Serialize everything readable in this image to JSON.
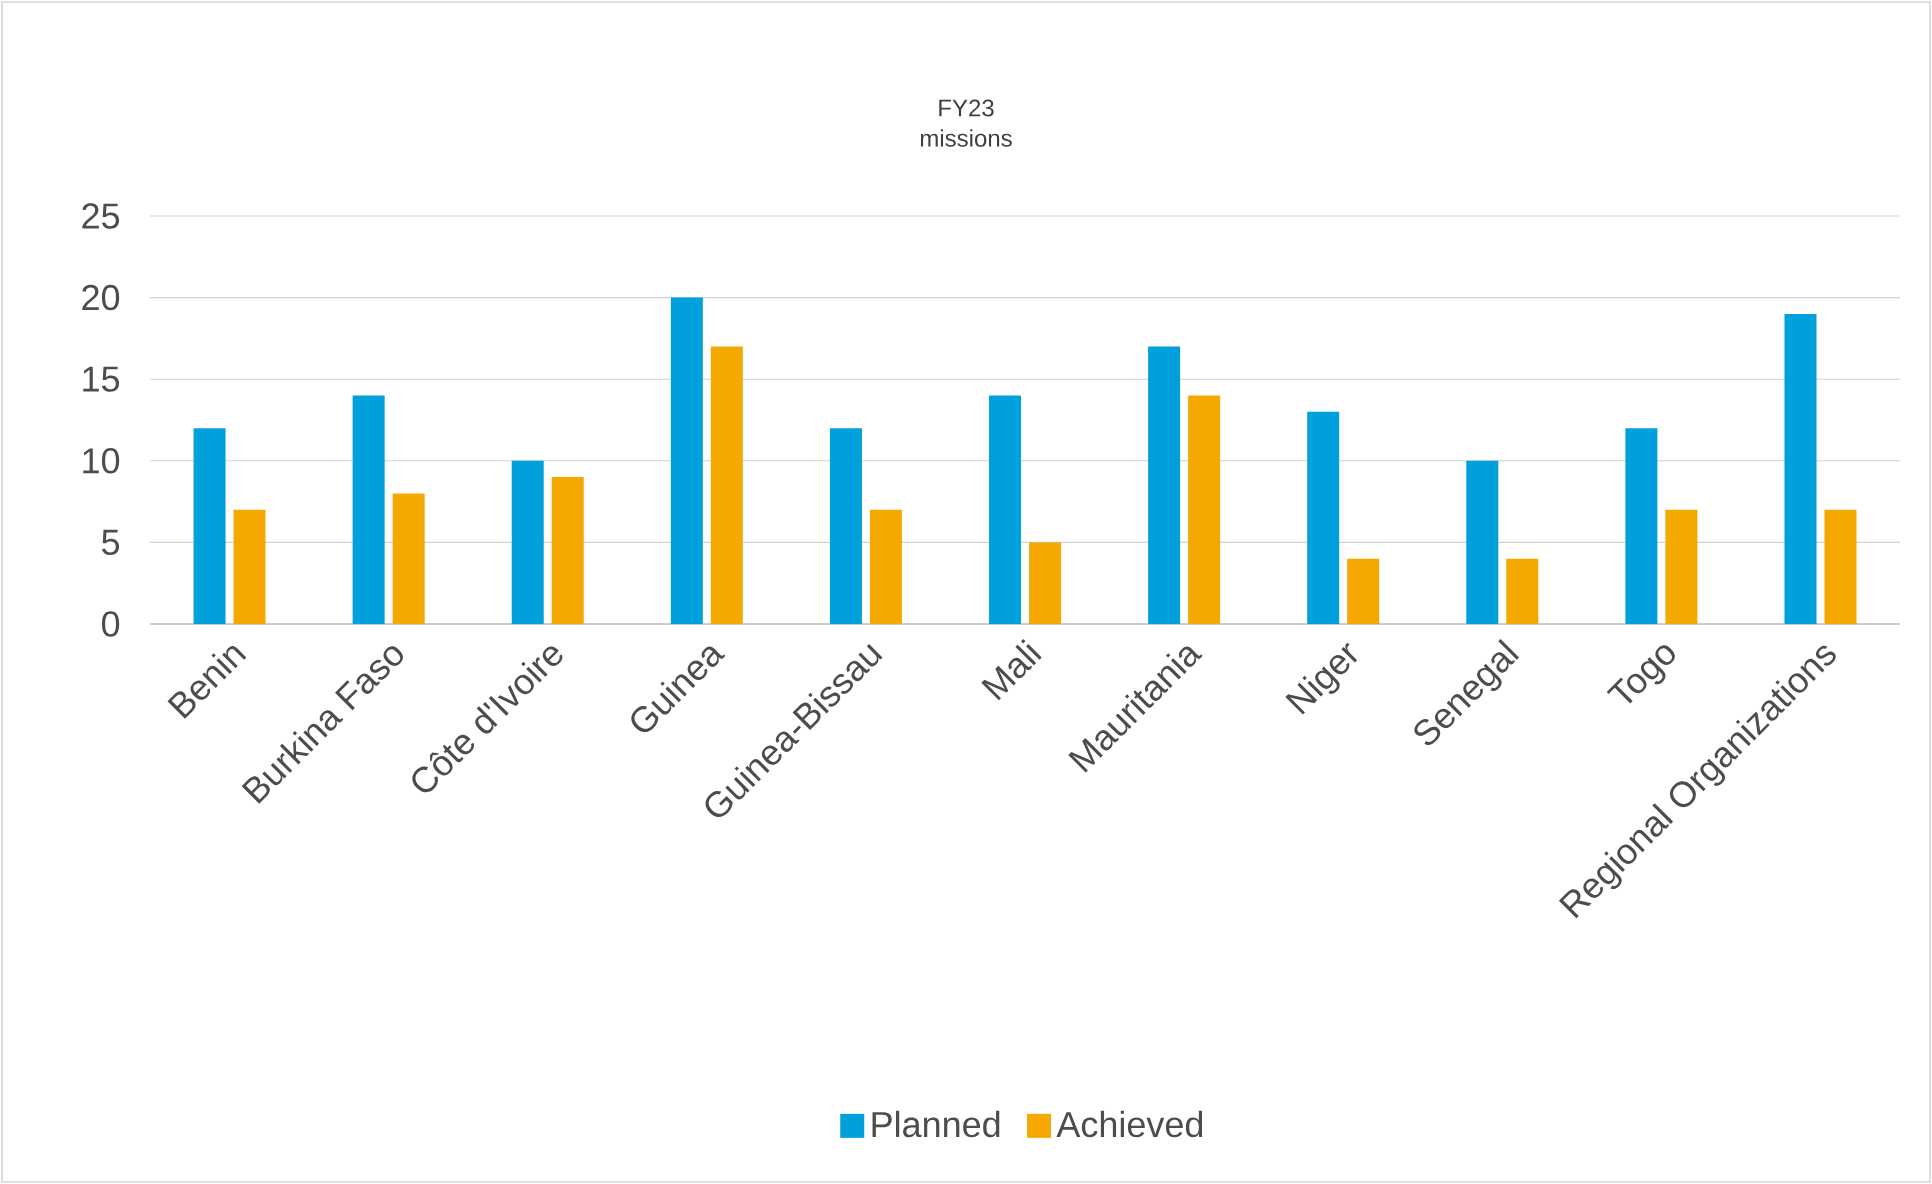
{
  "chart_data": {
    "type": "bar",
    "title": "FY23",
    "subtitle": "missions",
    "categories": [
      "Benin",
      "Burkina Faso",
      "Côte d'Ivoire",
      "Guinea",
      "Guinea-Bissau",
      "Mali",
      "Mauritania",
      "Niger",
      "Senegal",
      "Togo",
      "Regional Organizations"
    ],
    "series": [
      {
        "name": "Planned",
        "color": "#00a0dc",
        "values": [
          12,
          14,
          10,
          20,
          12,
          14,
          17,
          13,
          10,
          12,
          19
        ]
      },
      {
        "name": "Achieved",
        "color": "#f5a800",
        "values": [
          7,
          8,
          9,
          17,
          7,
          5,
          14,
          4,
          4,
          7,
          7
        ]
      }
    ],
    "ylim": [
      0,
      25
    ],
    "yticks": [
      0,
      5,
      10,
      15,
      20,
      25
    ],
    "grid": "y",
    "legend": "bottom"
  }
}
